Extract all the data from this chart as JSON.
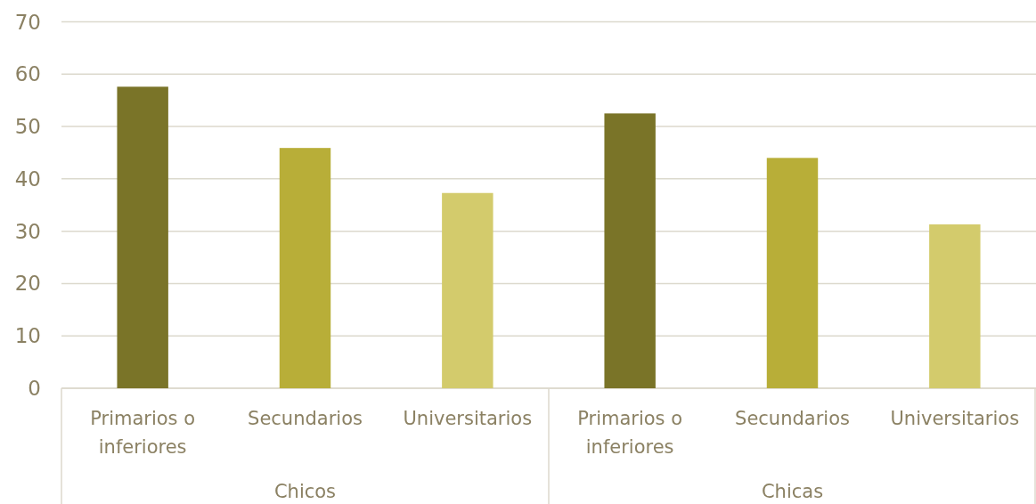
{
  "chart_data": {
    "type": "bar",
    "categories": [
      "Primarios o inferiores",
      "Secundarios",
      "Universitarios",
      "Primarios o inferiores",
      "Secundarios",
      "Universitarios"
    ],
    "values": [
      57.6,
      45.9,
      37.3,
      52.5,
      44.0,
      31.3
    ],
    "colors": [
      "#7a7428",
      "#b8ae38",
      "#d3cb6c",
      "#7a7428",
      "#b8ae38",
      "#d3cb6c"
    ],
    "ylim": [
      0,
      70
    ],
    "yticks": [
      0,
      10,
      20,
      30,
      40,
      50,
      60,
      70
    ],
    "grid": "y",
    "annotations": [
      "Chicos",
      "Chicas"
    ]
  }
}
